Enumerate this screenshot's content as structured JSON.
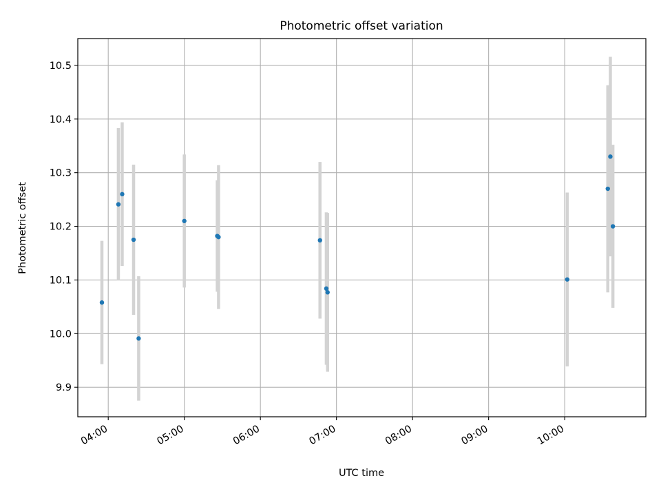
{
  "chart_data": {
    "type": "scatter",
    "title": "Photometric offset variation",
    "xlabel": "UTC time",
    "ylabel": "Photometric offset",
    "x_format": "HH:MM",
    "xlim": [
      "03:36",
      "11:04"
    ],
    "ylim": [
      9.845,
      10.55
    ],
    "x_ticks": [
      "04:00",
      "05:00",
      "06:00",
      "07:00",
      "08:00",
      "09:00",
      "10:00"
    ],
    "y_ticks": [
      9.9,
      10.0,
      10.1,
      10.2,
      10.3,
      10.4,
      10.5
    ],
    "y_tick_labels": [
      "9.9",
      "10.0",
      "10.1",
      "10.2",
      "10.3",
      "10.4",
      "10.5"
    ],
    "grid": true,
    "point_color": "#1f77b4",
    "errorbar_color": "#d3d3d3",
    "points": [
      {
        "x": "03:55",
        "y": 10.058,
        "yerr": 0.115
      },
      {
        "x": "04:08",
        "y": 10.241,
        "yerr": 0.142
      },
      {
        "x": "04:11",
        "y": 10.26,
        "yerr": 0.134
      },
      {
        "x": "04:20",
        "y": 10.175,
        "yerr": 0.14
      },
      {
        "x": "04:24",
        "y": 9.991,
        "yerr": 0.116
      },
      {
        "x": "05:00",
        "y": 10.21,
        "yerr": 0.124
      },
      {
        "x": "05:26",
        "y": 10.182,
        "yerr": 0.104
      },
      {
        "x": "05:27",
        "y": 10.18,
        "yerr": 0.134
      },
      {
        "x": "06:47",
        "y": 10.174,
        "yerr": 0.146
      },
      {
        "x": "06:52",
        "y": 10.084,
        "yerr": 0.142
      },
      {
        "x": "06:53",
        "y": 10.077,
        "yerr": 0.148
      },
      {
        "x": "10:02",
        "y": 10.101,
        "yerr": 0.162
      },
      {
        "x": "10:34",
        "y": 10.27,
        "yerr": 0.193
      },
      {
        "x": "10:36",
        "y": 10.33,
        "yerr": 0.186
      },
      {
        "x": "10:38",
        "y": 10.2,
        "yerr": 0.152
      }
    ]
  }
}
